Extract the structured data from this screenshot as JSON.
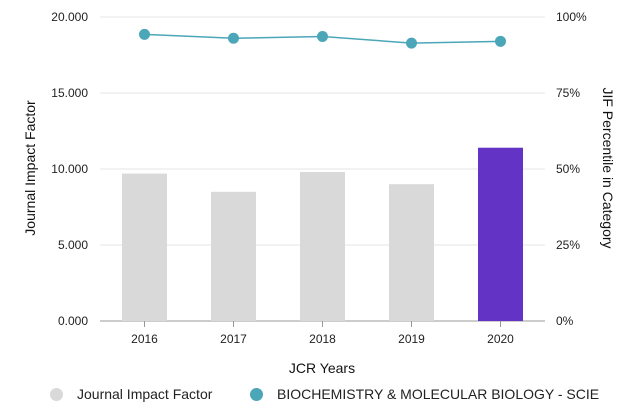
{
  "chart_data": {
    "type": "bar",
    "categories": [
      "2016",
      "2017",
      "2018",
      "2019",
      "2020"
    ],
    "series": [
      {
        "name": "Journal Impact Factor",
        "chart_type": "bar",
        "axis": "left",
        "values": [
          9.7,
          8.5,
          9.8,
          9.0,
          11.4
        ],
        "colors": [
          "#d9d9d9",
          "#d9d9d9",
          "#d9d9d9",
          "#d9d9d9",
          "#6233c5"
        ]
      },
      {
        "name": "BIOCHEMISTRY & MOLECULAR BIOLOGY - SCIE",
        "chart_type": "line",
        "axis": "right",
        "values": [
          94.3,
          93.0,
          93.6,
          91.4,
          92.0
        ],
        "color": "#4ba6b8"
      }
    ],
    "xlabel": "JCR Years",
    "ylabel": "Journal Impact Factor",
    "y2label": "JIF Percentile in Category",
    "ylim": [
      0,
      20
    ],
    "y2lim": [
      0,
      100
    ],
    "yticks": [
      "0.000",
      "5.000",
      "10.000",
      "15.000",
      "20.000"
    ],
    "y2ticks": [
      "0%",
      "25%",
      "50%",
      "75%",
      "100%"
    ],
    "grid": true,
    "legend_position": "bottom"
  },
  "legend": {
    "items": [
      {
        "label": "Journal Impact Factor",
        "color": "#d9d9d9"
      },
      {
        "label": "BIOCHEMISTRY & MOLECULAR BIOLOGY - SCIE",
        "color": "#4ba6b8"
      }
    ]
  }
}
